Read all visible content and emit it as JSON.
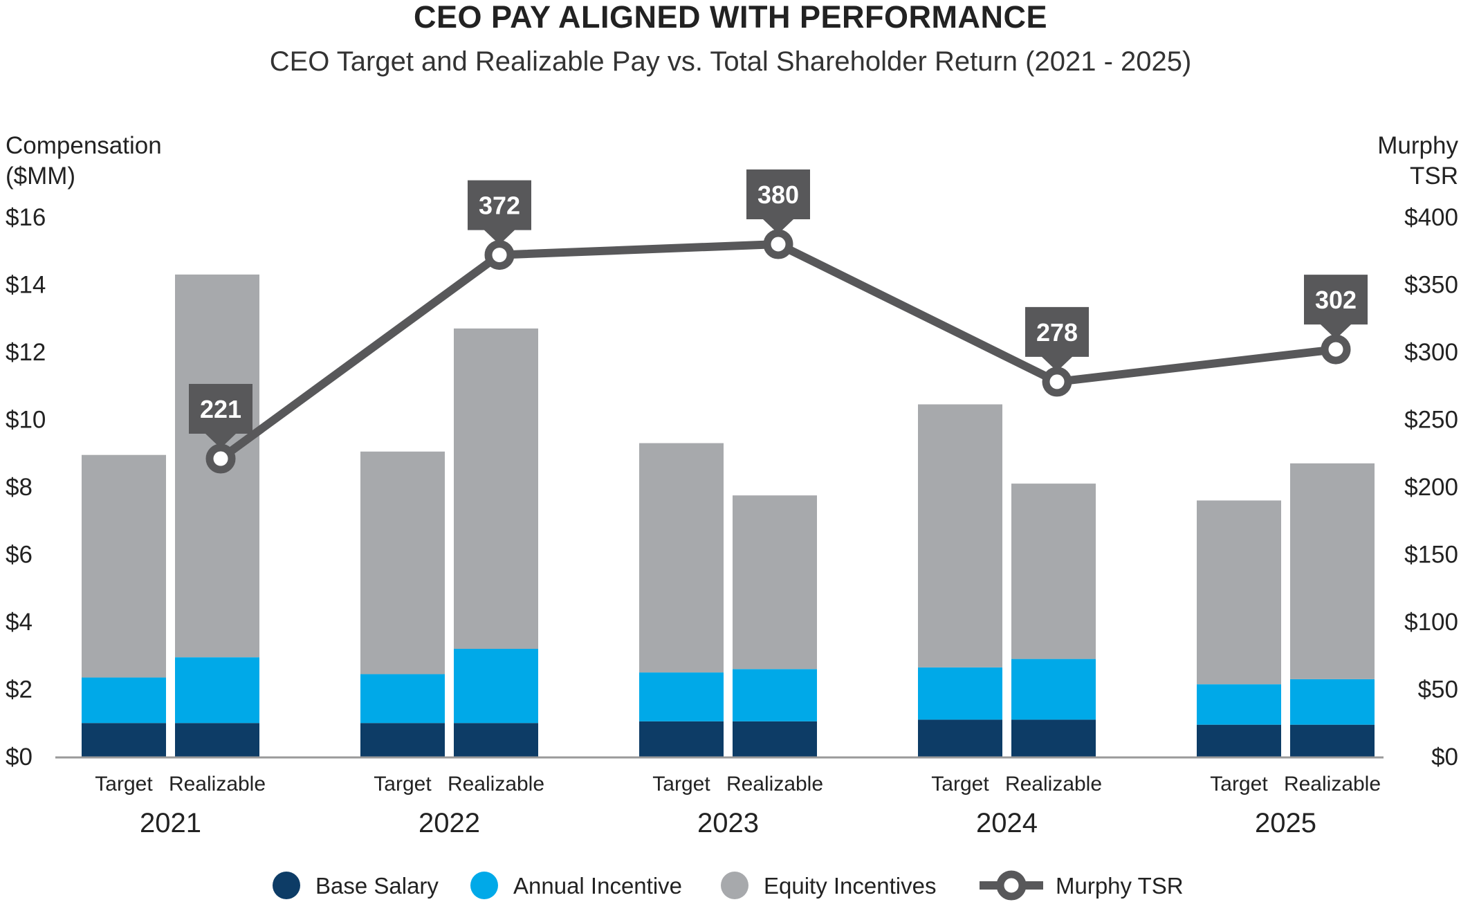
{
  "chart_data": {
    "type": "bar",
    "title": "CEO PAY ALIGNED WITH PERFORMANCE",
    "subtitle": "CEO Target and Realizable Pay vs. Total Shareholder Return (2021 - 2025)",
    "ylabel_left": [
      "Compensation",
      "($MM)"
    ],
    "ylabel_right": [
      "Murphy",
      "TSR"
    ],
    "ylim_left": [
      0,
      16
    ],
    "ylim_right": [
      0,
      400
    ],
    "left_ticks": [
      "$0",
      "$2",
      "$4",
      "$6",
      "$8",
      "$10",
      "$12",
      "$14",
      "$16"
    ],
    "right_ticks": [
      "$0",
      "$50",
      "$100",
      "$150",
      "$200",
      "$250",
      "$300",
      "$350",
      "$400"
    ],
    "years": [
      "2021",
      "2022",
      "2023",
      "2024",
      "2025"
    ],
    "bar_types": [
      "Target",
      "Realizable"
    ],
    "series": [
      {
        "name": "Base Salary",
        "color": "#0d3c66",
        "values": [
          [
            1.0,
            1.0
          ],
          [
            1.0,
            1.0
          ],
          [
            1.05,
            1.05
          ],
          [
            1.1,
            1.1
          ],
          [
            0.95,
            0.95
          ]
        ]
      },
      {
        "name": "Annual Incentive",
        "color": "#00a9e8",
        "values": [
          [
            1.35,
            1.95
          ],
          [
            1.45,
            2.2
          ],
          [
            1.45,
            1.55
          ],
          [
            1.55,
            1.8
          ],
          [
            1.2,
            1.35
          ]
        ]
      },
      {
        "name": "Equity Incentives",
        "color": "#a7a9ac",
        "values": [
          [
            6.6,
            11.35
          ],
          [
            6.6,
            9.5
          ],
          [
            6.8,
            5.15
          ],
          [
            7.8,
            5.2
          ],
          [
            5.45,
            6.4
          ]
        ]
      }
    ],
    "line": {
      "name": "Murphy TSR",
      "color": "#58585a",
      "values": [
        221,
        372,
        380,
        278,
        302
      ]
    },
    "grid": false,
    "legend_position": "bottom"
  }
}
